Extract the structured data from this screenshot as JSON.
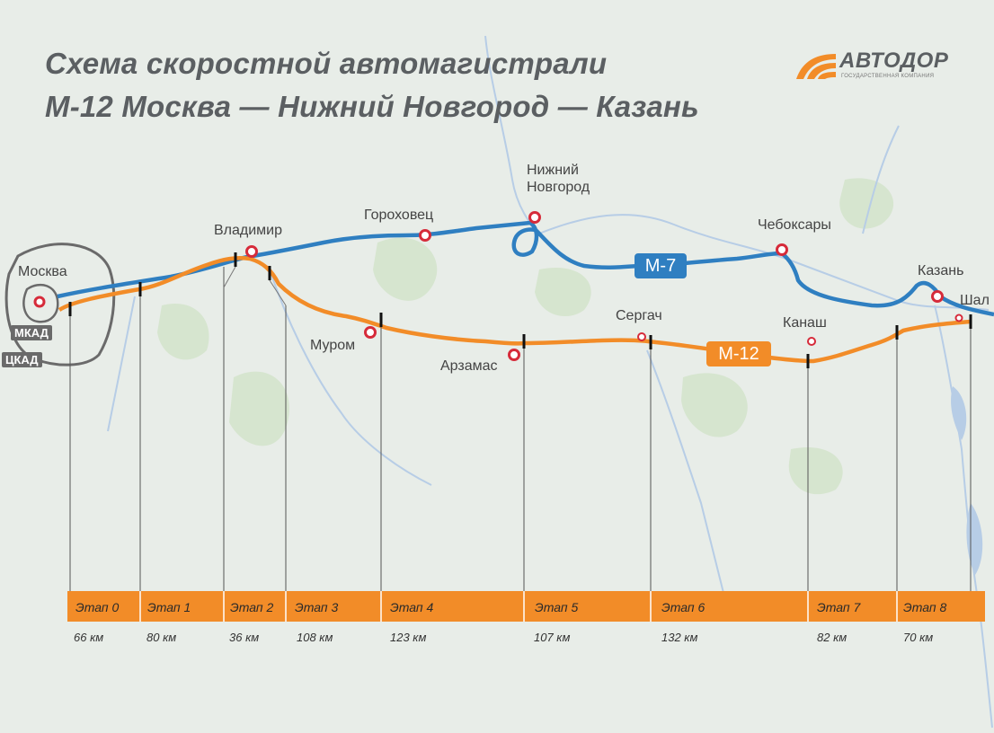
{
  "title": {
    "line1": "Схема скоростной автомагистрали",
    "line2": "М-12 Москва — Нижний Новгород — Казань"
  },
  "logo": {
    "name": "АВТОДОР",
    "subtitle": "Государственная компания",
    "color": "#f28c28"
  },
  "routes": {
    "m7": {
      "label": "М-7",
      "color": "#2f7fc1"
    },
    "m12": {
      "label": "М-12",
      "color": "#f28c28"
    }
  },
  "rings": {
    "mkad": "МКАД",
    "tskad": "ЦКАД"
  },
  "cities": {
    "moskva": "Москва",
    "vladimir": "Владимир",
    "gorokhovets": "Гороховец",
    "nizhny_line1": "Нижний",
    "nizhny_line2": "Новгород",
    "cheboksary": "Чебоксары",
    "kazan": "Казань",
    "shali": "Шал",
    "murom": "Муром",
    "arzamas": "Арзамас",
    "sergach": "Сергач",
    "kanash": "Канаш"
  },
  "stages": [
    {
      "label": "Этап 0",
      "distance": "66 км"
    },
    {
      "label": "Этап 1",
      "distance": "80 км"
    },
    {
      "label": "Этап 2",
      "distance": "36 км"
    },
    {
      "label": "Этап 3",
      "distance": "108 км"
    },
    {
      "label": "Этап 4",
      "distance": "123 км"
    },
    {
      "label": "Этап 5",
      "distance": "107 км"
    },
    {
      "label": "Этап 6",
      "distance": "132 км"
    },
    {
      "label": "Этап 7",
      "distance": "82 км"
    },
    {
      "label": "Этап 8",
      "distance": "70 км"
    }
  ],
  "colors": {
    "city_marker": "#d62b3a",
    "water": "#b7cde6",
    "forest": "#d2e3cc",
    "ring": "#6a6a6a"
  }
}
